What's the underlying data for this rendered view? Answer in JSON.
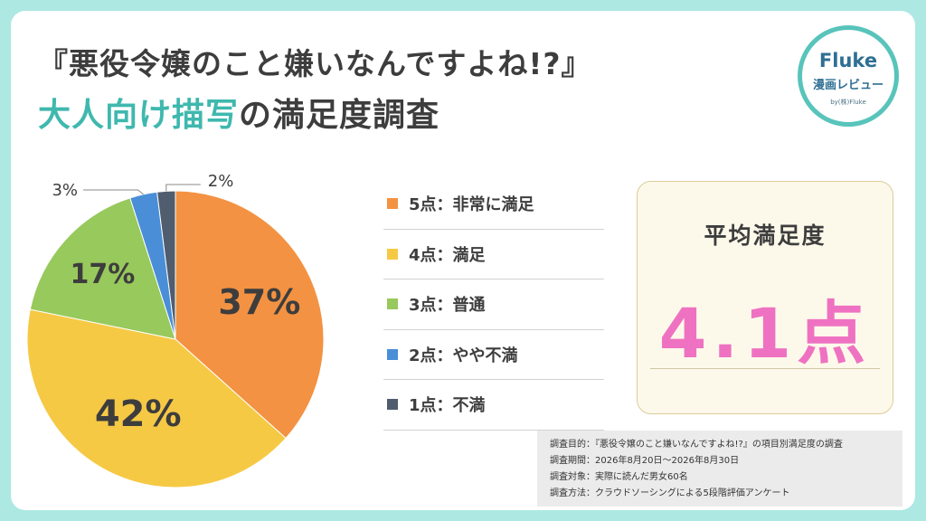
{
  "title": {
    "line1": "『悪役令嬢のこと嫌いなんですよね!?』",
    "line2_highlight": "大人向け描写",
    "line2_rest": "の満足度調査"
  },
  "logo": {
    "brand": "Fluke",
    "subtitle": "漫画レビュー",
    "byline": "by(株)Fluke"
  },
  "chart_data": {
    "type": "pie",
    "slices": [
      {
        "label": "5点：非常に満足",
        "value": 37,
        "display": "37%",
        "color": "#f39242"
      },
      {
        "label": "4点：満足",
        "value": 42,
        "display": "42%",
        "color": "#f6c945"
      },
      {
        "label": "3点：普通",
        "value": 17,
        "display": "17%",
        "color": "#98c95c"
      },
      {
        "label": "2点：やや不満",
        "value": 3,
        "display": "3%",
        "color": "#4a8ed8"
      },
      {
        "label": "1点：不満",
        "value": 2,
        "display": "2%",
        "color": "#4f5d6e"
      }
    ],
    "legend_position": "right"
  },
  "average": {
    "label": "平均満足度",
    "value": "4.1点"
  },
  "survey_notes": [
    "調査目的：『悪役令嬢のこと嫌いなんですよね!?』の項目別満足度の調査",
    "調査期間：2026年8月20日～2026年8月30日",
    "調査対象：実際に読んだ男女60名",
    "調査方法：クラウドソーシングによる5段階評価アンケート"
  ]
}
